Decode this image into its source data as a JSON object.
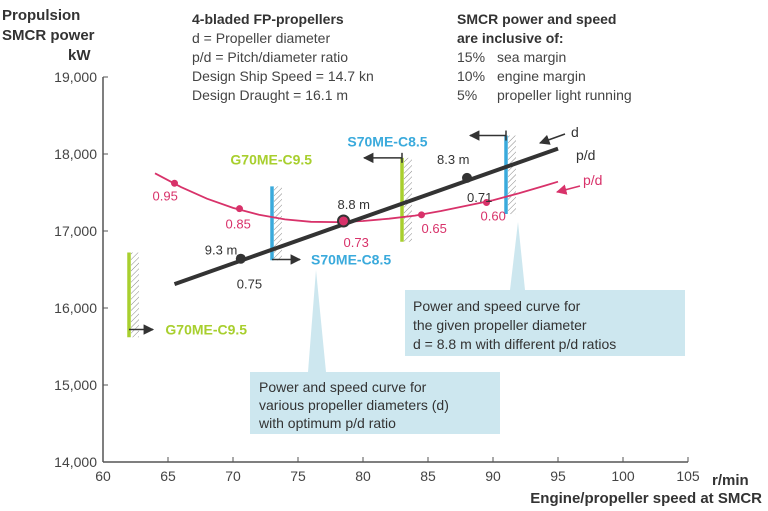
{
  "chart_data": {
    "type": "line",
    "ylabel_lines": [
      "Propulsion",
      "SMCR power",
      "kW"
    ],
    "xunit": "r/min",
    "xlabel": "Engine/propeller speed at SMCR",
    "xlim": [
      60,
      105
    ],
    "ylim": [
      14000,
      19000
    ],
    "x_ticks": [
      60,
      65,
      70,
      75,
      80,
      85,
      90,
      95,
      100,
      105
    ],
    "x_tick_labels": [
      "60",
      "65",
      "70",
      "75",
      "80",
      "85",
      "90",
      "95",
      "100",
      "105"
    ],
    "y_ticks": [
      14000,
      15000,
      16000,
      17000,
      18000,
      19000
    ],
    "y_tick_labels": [
      "14,000",
      "15,000",
      "16,000",
      "17,000",
      "18,000",
      "19,000"
    ],
    "grid": false,
    "colors": {
      "d_line": "#333333",
      "pd_curve": "#d8326a",
      "g70": "#a8cf2e",
      "s70": "#3aaadc",
      "callout_bg": "#cde7ef",
      "axis": "#555555"
    },
    "notes_left": {
      "title": "4-bladed FP-propellers",
      "lines": [
        "d = Propeller diameter",
        "p/d = Pitch/diameter ratio",
        "Design Ship Speed = 14.7 kn",
        "Design Draught = 16.1 m"
      ]
    },
    "notes_right": {
      "title_lines": [
        "SMCR power and speed",
        "are inclusive of:"
      ],
      "lines": [
        {
          "pct": "15%",
          "text": "sea margin"
        },
        {
          "pct": "10%",
          "text": "engine margin"
        },
        {
          "pct": "5%",
          "text": "propeller light running"
        }
      ]
    },
    "d_line": {
      "label": "d",
      "end_label": "p/d",
      "x": [
        65.5,
        95
      ],
      "y": [
        16310,
        18070
      ],
      "points": [
        {
          "x": 70.6,
          "y": 16640,
          "label": "9.3 m",
          "pd": "0.75"
        },
        {
          "x": 78.5,
          "y": 17130,
          "label": "8.8 m",
          "pd": "0.73"
        },
        {
          "x": 88.0,
          "y": 17690,
          "label": "8.3 m",
          "pd": "0.71"
        }
      ]
    },
    "pd_curve": {
      "label": "p/d",
      "x": [
        64,
        66,
        68,
        70,
        72,
        74,
        76,
        78,
        80,
        82,
        84,
        86,
        88,
        90,
        92,
        94,
        95
      ],
      "y": [
        17750,
        17570,
        17420,
        17300,
        17210,
        17150,
        17120,
        17115,
        17130,
        17160,
        17200,
        17260,
        17330,
        17400,
        17490,
        17590,
        17640
      ],
      "points": [
        {
          "x": 65.5,
          "y": 17620,
          "label": "0.95"
        },
        {
          "x": 70.5,
          "y": 17290,
          "label": "0.85"
        },
        {
          "x": 78.5,
          "y": 17130,
          "label": "0.73"
        },
        {
          "x": 84.5,
          "y": 17210,
          "label": "0.65"
        },
        {
          "x": 89.5,
          "y": 17370,
          "label": "0.60"
        }
      ]
    },
    "engine_limits": [
      {
        "name": "G70ME-C9.5",
        "x": 62,
        "y_range": [
          15620,
          16720
        ],
        "color": "g70",
        "label_x": 64.8,
        "label_y": 15720
      },
      {
        "name": "S70ME-C8.5",
        "x": 73,
        "y_range": [
          16620,
          17580
        ],
        "color": "s70",
        "label_x": 76.0,
        "label_y": 16630
      },
      {
        "name": "G70ME-C9.5",
        "x": 83,
        "y_range": [
          16860,
          17950
        ],
        "color": "g70",
        "label_x": 69.8,
        "label_y": 17930
      },
      {
        "name": "S70ME-C8.5",
        "x": 91,
        "y_range": [
          17220,
          18240
        ],
        "color": "s70",
        "label_x": 78.8,
        "label_y": 18160
      }
    ],
    "callouts": [
      {
        "lines": [
          "Power and speed curve for",
          "the given propeller diameter",
          "d = 8.8 m with different p/d ratios"
        ]
      },
      {
        "lines": [
          "Power and speed curve for",
          "various propeller diameters (d)",
          "with optimum p/d ratio"
        ]
      }
    ]
  }
}
